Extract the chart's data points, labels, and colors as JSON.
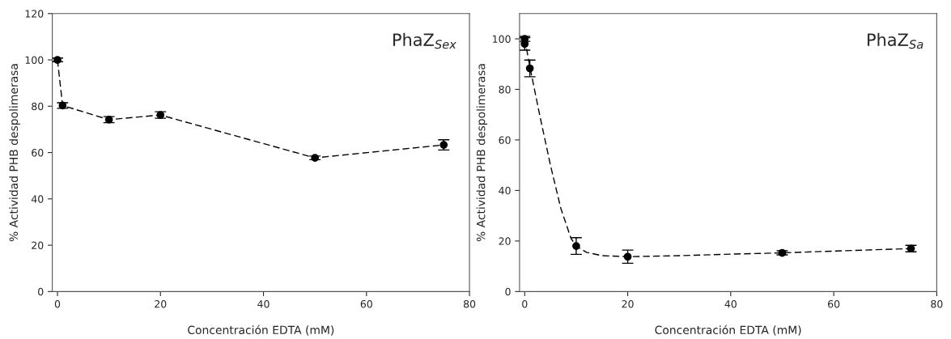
{
  "chart_data": [
    {
      "type": "line",
      "xlabel": "Concentración EDTA (mM)",
      "ylabel": "% Actividad PHB despolimerasa",
      "annotations": [
        "PhaZ$_{Sex}$"
      ],
      "xlim": [
        -1,
        80
      ],
      "xticks": [
        0,
        20,
        40,
        60,
        80
      ],
      "ylim": [
        0,
        120
      ],
      "yticks": [
        0,
        20,
        40,
        60,
        80,
        100,
        120
      ],
      "grid": false,
      "marker": "circle",
      "line_style": "dashed",
      "series": [
        {
          "color": "#000000",
          "x": [
            0,
            1,
            10,
            20,
            50,
            75
          ],
          "values": [
            100,
            80.3,
            74.2,
            76.2,
            57.7,
            63.3
          ],
          "errors": [
            0.8,
            1.2,
            1.3,
            1.4,
            0.8,
            2.2
          ]
        }
      ]
    },
    {
      "type": "scatter",
      "xlabel": "Concentración EDTA (mM)",
      "ylabel": "% Actividad PHB despolimerasa",
      "annotations": [
        "PhaZ$_{Sa}$"
      ],
      "xlim": [
        -1,
        80
      ],
      "xticks": [
        0,
        20,
        40,
        60,
        80
      ],
      "ylim": [
        0,
        110
      ],
      "yticks": [
        0,
        20,
        40,
        60,
        80,
        100
      ],
      "grid": false,
      "marker": "circle",
      "series": [
        {
          "color": "#000000",
          "x": [
            0,
            0,
            1,
            10,
            20,
            50,
            75
          ],
          "values": [
            100,
            98,
            88.3,
            18,
            13.8,
            15.3,
            17
          ],
          "errors": [
            1,
            2.5,
            3.3,
            3.3,
            2.6,
            0.8,
            1.3
          ]
        },
        {
          "type": "line",
          "line_style": "dashed",
          "marker": "none",
          "color": "#000000",
          "x": [
            0,
            1,
            3,
            5,
            7,
            9,
            10,
            12,
            15,
            20,
            30,
            40,
            50,
            60,
            75
          ],
          "values": [
            100,
            89,
            69,
            50,
            33,
            21,
            18,
            15.5,
            14.2,
            13.8,
            14.2,
            14.8,
            15.3,
            16,
            17
          ]
        }
      ]
    }
  ]
}
